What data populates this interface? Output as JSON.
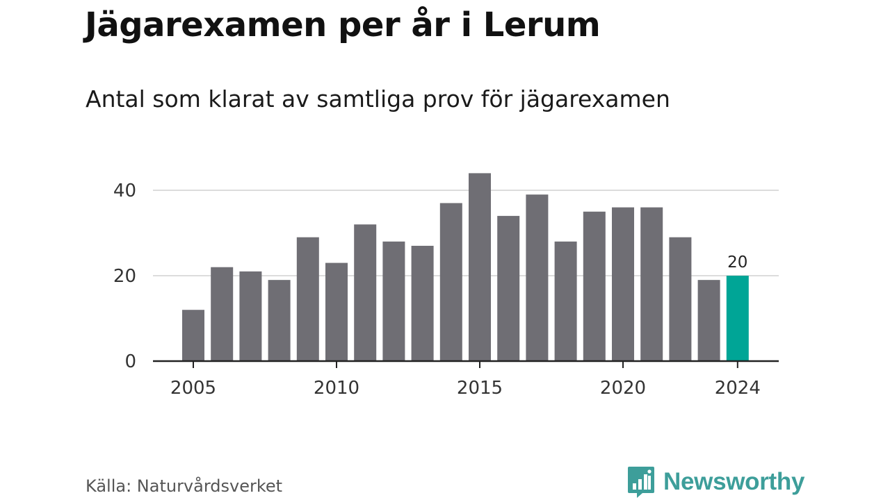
{
  "header": {
    "title": "Jägarexamen per år i Lerum",
    "subtitle": "Antal som klarat av samtliga prov för jägarexamen"
  },
  "footer": {
    "source": "Källa: Naturvårdsverket",
    "brand": "Newsworthy",
    "brand_icon": "bar-chart-speech-bubble-icon"
  },
  "colors": {
    "bar": "#6f6e74",
    "highlight": "#00a596",
    "grid": "#dcdcdc",
    "axis": "#222222",
    "brand": "#3d9e9a"
  },
  "chart_data": {
    "type": "bar",
    "x": [
      2005,
      2006,
      2007,
      2008,
      2009,
      2010,
      2011,
      2012,
      2013,
      2014,
      2015,
      2016,
      2017,
      2018,
      2019,
      2020,
      2021,
      2022,
      2023,
      2024
    ],
    "values": [
      12,
      22,
      21,
      19,
      29,
      23,
      32,
      28,
      27,
      37,
      44,
      34,
      39,
      28,
      35,
      36,
      36,
      29,
      19,
      20
    ],
    "x_ticks": [
      "2005",
      "2010",
      "2015",
      "2020",
      "2024"
    ],
    "y_ticks": [
      "0",
      "20",
      "40"
    ],
    "ylim": [
      0,
      45
    ],
    "highlight": {
      "x": 2024,
      "label": "20"
    },
    "grid": true
  }
}
